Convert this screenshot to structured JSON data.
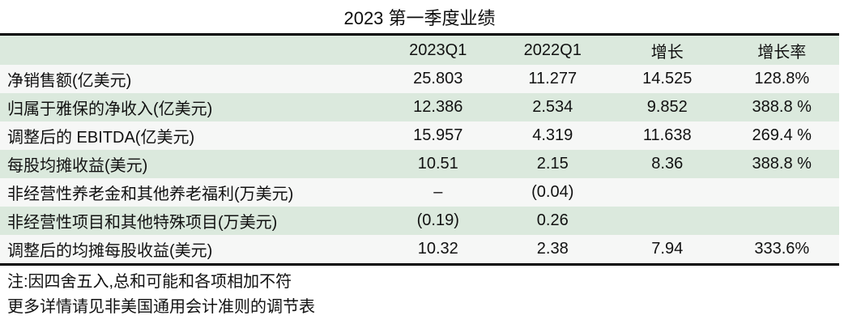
{
  "chart_data": {
    "type": "table",
    "title": "2023 第一季度业绩",
    "columns": [
      "2023Q1",
      "2022Q1",
      "增长",
      "增长率"
    ],
    "rows": [
      {
        "label": "净销售额(亿美元)",
        "values": [
          "25.803",
          "11.277",
          "14.525",
          "128.8%"
        ]
      },
      {
        "label": "归属于雅保的净收入(亿美元)",
        "values": [
          "12.386",
          "2.534",
          "9.852",
          "388.8 %"
        ]
      },
      {
        "label": "调整后的 EBITDA(亿美元)",
        "values": [
          "15.957",
          "4.319",
          "11.638",
          "269.4 %"
        ]
      },
      {
        "label": "每股均摊收益(美元)",
        "values": [
          "10.51",
          "2.15",
          "8.36",
          "388.8 %"
        ]
      },
      {
        "label": "非经营性养老金和其他养老福利(万美元)",
        "values": [
          "–",
          "(0.04)",
          "",
          ""
        ]
      },
      {
        "label": "非经营性项目和其他特殊项目(万美元)",
        "values": [
          "(0.19)",
          "0.26",
          "",
          ""
        ]
      },
      {
        "label": "调整后的均摊每股收益(美元)",
        "values": [
          "10.32",
          "2.38",
          "7.94",
          "333.6%"
        ]
      }
    ],
    "notes": [
      "注:因四舍五入,总和可能和各项相加不符",
      "更多详情请见非美国通用会计准则的调节表"
    ],
    "layout": {
      "row_banding": [
        "light",
        "green"
      ],
      "header_background": "green",
      "value_alignment": "center",
      "label_alignment": "left"
    }
  },
  "colors": {
    "band_green": "#dbe9dd",
    "band_light": "#f6f7f6",
    "border": "#000000",
    "text": "#111111"
  }
}
